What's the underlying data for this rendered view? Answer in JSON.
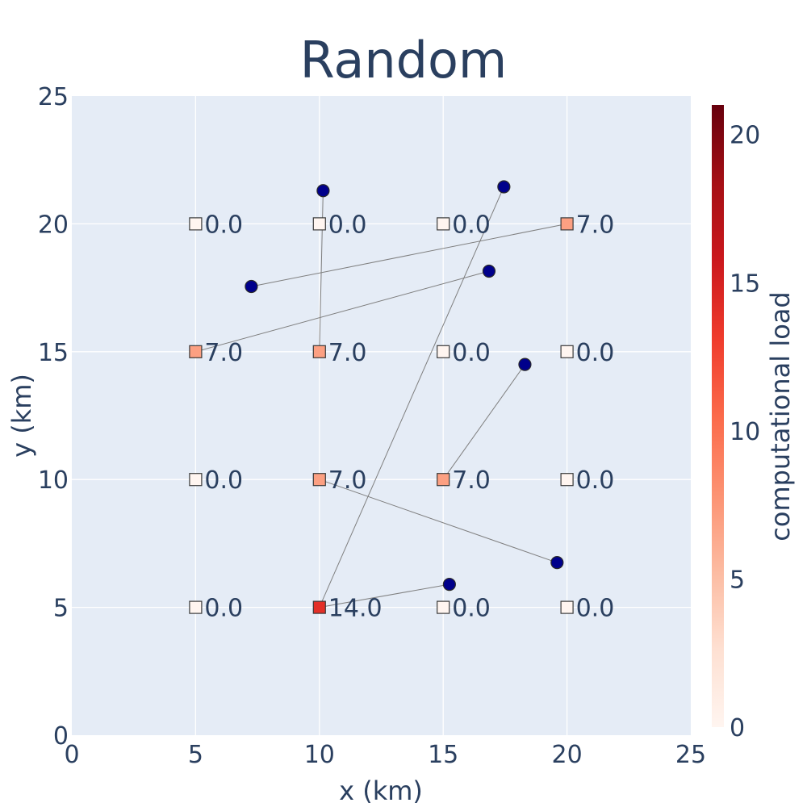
{
  "chart_data": {
    "type": "scatter",
    "title": "Random",
    "xlabel": "x (km)",
    "ylabel": "y (km)",
    "xlim": [
      0,
      25
    ],
    "ylim": [
      0,
      25
    ],
    "x_ticks": [
      "0",
      "5",
      "10",
      "15",
      "20",
      "25"
    ],
    "y_ticks": [
      "0",
      "5",
      "10",
      "15",
      "20",
      "25"
    ],
    "grid": true,
    "servers": [
      {
        "x": 5,
        "y": 20,
        "load": 0,
        "label": "0.0"
      },
      {
        "x": 10,
        "y": 20,
        "load": 0,
        "label": "0.0"
      },
      {
        "x": 15,
        "y": 20,
        "load": 0,
        "label": "0.0"
      },
      {
        "x": 20,
        "y": 20,
        "load": 7,
        "label": "7.0"
      },
      {
        "x": 5,
        "y": 15,
        "load": 7,
        "label": "7.0"
      },
      {
        "x": 10,
        "y": 15,
        "load": 7,
        "label": "7.0"
      },
      {
        "x": 15,
        "y": 15,
        "load": 0,
        "label": "0.0"
      },
      {
        "x": 20,
        "y": 15,
        "load": 0,
        "label": "0.0"
      },
      {
        "x": 5,
        "y": 10,
        "load": 0,
        "label": "0.0"
      },
      {
        "x": 10,
        "y": 10,
        "load": 7,
        "label": "7.0"
      },
      {
        "x": 15,
        "y": 10,
        "load": 7,
        "label": "7.0"
      },
      {
        "x": 20,
        "y": 10,
        "load": 0,
        "label": "0.0"
      },
      {
        "x": 5,
        "y": 5,
        "load": 0,
        "label": "0.0"
      },
      {
        "x": 10,
        "y": 5,
        "load": 14,
        "label": "14.0"
      },
      {
        "x": 15,
        "y": 5,
        "load": 0,
        "label": "0.0"
      },
      {
        "x": 20,
        "y": 5,
        "load": 0,
        "label": "0.0"
      }
    ],
    "users": [
      {
        "x": 10.15,
        "y": 21.3,
        "server": [
          10,
          15
        ]
      },
      {
        "x": 17.45,
        "y": 21.45,
        "server": [
          10,
          5
        ]
      },
      {
        "x": 7.25,
        "y": 17.55,
        "server": [
          20,
          20
        ]
      },
      {
        "x": 16.85,
        "y": 18.15,
        "server": [
          5,
          15
        ]
      },
      {
        "x": 18.3,
        "y": 14.5,
        "server": [
          15,
          10
        ]
      },
      {
        "x": 19.6,
        "y": 6.75,
        "server": [
          10,
          10
        ]
      },
      {
        "x": 15.25,
        "y": 5.9,
        "server": [
          10,
          5
        ]
      }
    ],
    "colorbar": {
      "title": "computational load",
      "min": 0,
      "max": 21,
      "ticks": [
        "0",
        "5",
        "10",
        "15",
        "20"
      ],
      "colorscale": [
        "#fff5f0",
        "#fee0d2",
        "#fcbba1",
        "#fc9272",
        "#fb6a4a",
        "#ef3b2c",
        "#cb181d",
        "#a50f15",
        "#67000d"
      ]
    },
    "colors": {
      "plot_bg": "#e5ecf6",
      "user_fill": "#00008b",
      "link": "#7f7f7f",
      "text": "#2a3f5f"
    }
  }
}
